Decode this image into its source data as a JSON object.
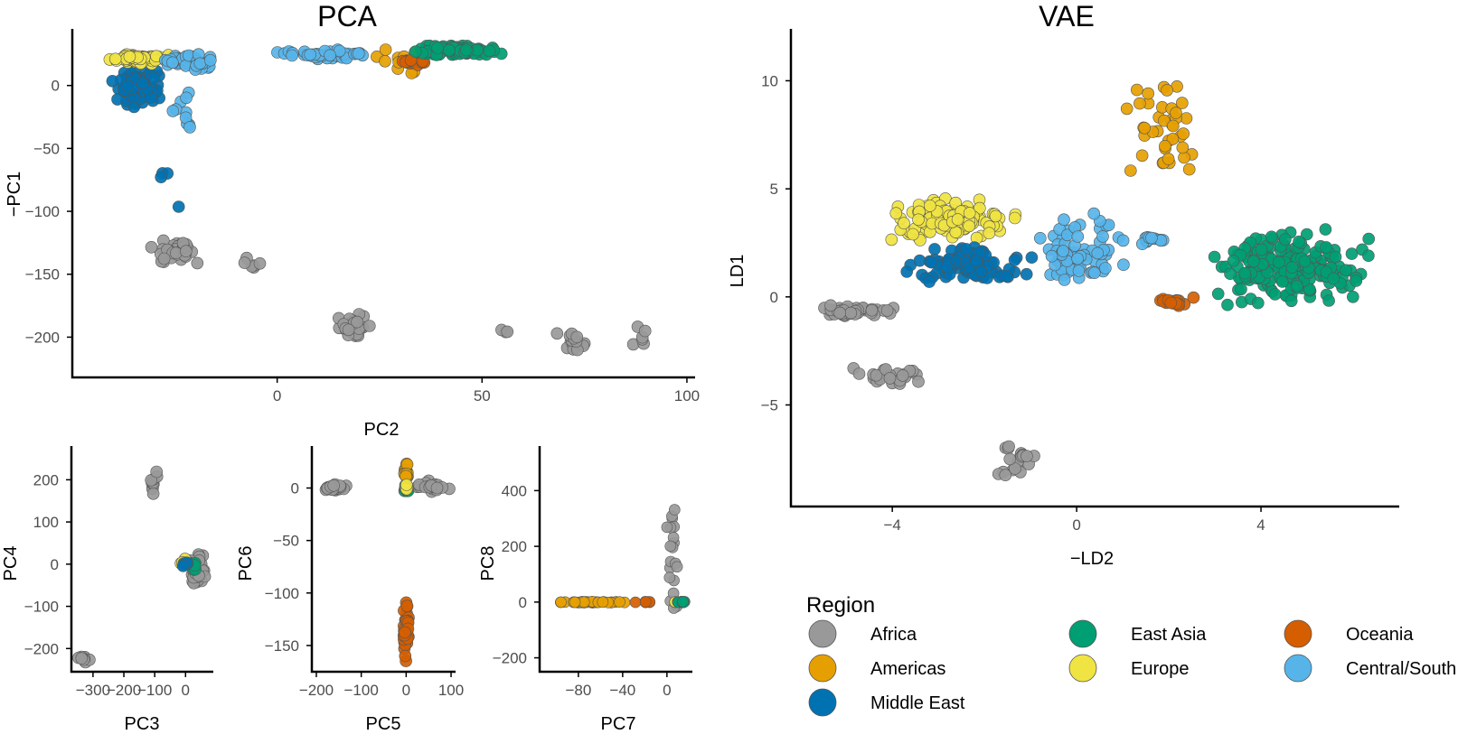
{
  "colors": {
    "Africa": "#999999",
    "Americas": "#E69F00",
    "Central/South Asia": "#56B4E9",
    "East Asia": "#009E73",
    "Europe": "#F0E442",
    "Middle East": "#0072B2",
    "Oceania": "#D55E00"
  },
  "legend": {
    "title": "Region",
    "items": [
      "Africa",
      "East Asia",
      "Oceania",
      "Americas",
      "Europe",
      "Central/South Asia",
      "Middle East"
    ]
  },
  "chart_data": [
    {
      "id": "pca-main",
      "type": "scatter",
      "title": "PCA",
      "xlabel": "PC2",
      "ylabel": "−PC1",
      "xlim": [
        -50,
        102
      ],
      "ylim": [
        -232,
        45
      ],
      "xticks": [
        0,
        50,
        100
      ],
      "yticks": [
        0,
        -50,
        -100,
        -150,
        -200
      ],
      "clusters": [
        {
          "region": "Africa",
          "x": [
            -34,
            -16
          ],
          "y": [
            -145,
            -120
          ],
          "n": 45
        },
        {
          "region": "Africa",
          "x": [
            -12,
            -1
          ],
          "y": [
            -150,
            -135
          ],
          "n": 6
        },
        {
          "region": "Africa",
          "x": [
            14,
            23
          ],
          "y": [
            -203,
            -178
          ],
          "n": 25
        },
        {
          "region": "Africa",
          "x": [
            53,
            57
          ],
          "y": [
            -198,
            -192
          ],
          "n": 3
        },
        {
          "region": "Africa",
          "x": [
            66,
            79
          ],
          "y": [
            -215,
            -193
          ],
          "n": 14
        },
        {
          "region": "Africa",
          "x": [
            85,
            96
          ],
          "y": [
            -226,
            -188
          ],
          "n": 6
        },
        {
          "region": "Middle East",
          "x": [
            -42,
            -27
          ],
          "y": [
            -18,
            18
          ],
          "n": 90
        },
        {
          "region": "Middle East",
          "x": [
            -30,
            -22
          ],
          "y": [
            -100,
            -48
          ],
          "n": 4
        },
        {
          "region": "Europe",
          "x": [
            -42,
            -25
          ],
          "y": [
            16,
            27
          ],
          "n": 70
        },
        {
          "region": "Central/South Asia",
          "x": [
            -30,
            -13
          ],
          "y": [
            10,
            28
          ],
          "n": 40
        },
        {
          "region": "Central/South Asia",
          "x": [
            -27,
            -19
          ],
          "y": [
            -45,
            0
          ],
          "n": 10
        },
        {
          "region": "Central/South Asia",
          "x": [
            -3,
            28
          ],
          "y": [
            19,
            30
          ],
          "n": 40
        },
        {
          "region": "Americas",
          "x": [
            23,
            37
          ],
          "y": [
            8,
            30
          ],
          "n": 12
        },
        {
          "region": "Americas",
          "x": [
            34,
            50
          ],
          "y": [
            26,
            32
          ],
          "n": 20
        },
        {
          "region": "Oceania",
          "x": [
            28,
            38
          ],
          "y": [
            15,
            22
          ],
          "n": 15
        },
        {
          "region": "East Asia",
          "x": [
            29,
            57
          ],
          "y": [
            22,
            33
          ],
          "n": 110
        }
      ]
    },
    {
      "id": "pca-pc3-pc4",
      "type": "scatter",
      "xlabel": "PC3",
      "ylabel": "PC4",
      "xlim": [
        -370,
        90
      ],
      "ylim": [
        -255,
        280
      ],
      "xticks": [
        -300,
        -200,
        -100,
        0
      ],
      "yticks": [
        200,
        100,
        0,
        -100,
        -200
      ],
      "clusters": [
        {
          "region": "Africa",
          "x": [
            -130,
            -75
          ],
          "y": [
            150,
            240
          ],
          "n": 10
        },
        {
          "region": "Africa",
          "x": [
            -360,
            -300
          ],
          "y": [
            -240,
            -210
          ],
          "n": 8
        },
        {
          "region": "Africa",
          "x": [
            0,
            85
          ],
          "y": [
            -80,
            40
          ],
          "n": 30
        },
        {
          "region": "East Asia",
          "x": [
            10,
            40
          ],
          "y": [
            -20,
            10
          ],
          "n": 10
        },
        {
          "region": "Americas",
          "x": [
            -20,
            10
          ],
          "y": [
            -5,
            15
          ],
          "n": 5
        },
        {
          "region": "Europe",
          "x": [
            -20,
            5
          ],
          "y": [
            -5,
            15
          ],
          "n": 6
        },
        {
          "region": "Middle East",
          "x": [
            -10,
            10
          ],
          "y": [
            -10,
            10
          ],
          "n": 5
        }
      ]
    },
    {
      "id": "pca-pc5-pc6",
      "type": "scatter",
      "xlabel": "PC5",
      "ylabel": "PC6",
      "xlim": [
        -210,
        110
      ],
      "ylim": [
        -175,
        40
      ],
      "xticks": [
        -200,
        -100,
        0,
        100
      ],
      "yticks": [
        0,
        -50,
        -100,
        -150
      ],
      "clusters": [
        {
          "region": "Africa",
          "x": [
            -200,
            -120
          ],
          "y": [
            -5,
            5
          ],
          "n": 25
        },
        {
          "region": "Africa",
          "x": [
            10,
            105
          ],
          "y": [
            -5,
            8
          ],
          "n": 25
        },
        {
          "region": "Oceania",
          "x": [
            -8,
            8
          ],
          "y": [
            -170,
            -100
          ],
          "n": 35
        },
        {
          "region": "Americas",
          "x": [
            -5,
            5
          ],
          "y": [
            5,
            30
          ],
          "n": 20
        },
        {
          "region": "East Asia",
          "x": [
            -5,
            5
          ],
          "y": [
            -8,
            5
          ],
          "n": 10
        },
        {
          "region": "Europe",
          "x": [
            -5,
            5
          ],
          "y": [
            -3,
            5
          ],
          "n": 8
        }
      ]
    },
    {
      "id": "pca-pc7-pc8",
      "type": "scatter",
      "xlabel": "PC7",
      "ylabel": "PC8",
      "xlim": [
        -115,
        23
      ],
      "ylim": [
        -250,
        560
      ],
      "xticks": [
        -80,
        -40,
        0
      ],
      "yticks": [
        400,
        200,
        0,
        -200
      ],
      "clusters": [
        {
          "region": "Americas",
          "x": [
            -110,
            -25
          ],
          "y": [
            -3,
            3
          ],
          "n": 40
        },
        {
          "region": "Oceania",
          "x": [
            -30,
            -10
          ],
          "y": [
            -3,
            3
          ],
          "n": 8
        },
        {
          "region": "Africa",
          "x": [
            -2,
            12
          ],
          "y": [
            -220,
            510
          ],
          "n": 20
        },
        {
          "region": "Europe",
          "x": [
            5,
            10
          ],
          "y": [
            -3,
            3
          ],
          "n": 3
        },
        {
          "region": "East Asia",
          "x": [
            8,
            20
          ],
          "y": [
            -3,
            3
          ],
          "n": 15
        }
      ]
    },
    {
      "id": "vae",
      "type": "scatter",
      "title": "VAE",
      "xlabel": "−LD2",
      "ylabel": "LD1",
      "xlim": [
        -6.2,
        7.0
      ],
      "ylim": [
        -9.7,
        12.4
      ],
      "xticks": [
        -4,
        0,
        4
      ],
      "yticks": [
        10,
        5,
        0,
        -5
      ],
      "clusters": [
        {
          "region": "Africa",
          "x": [
            -5.9,
            -3.8
          ],
          "y": [
            -1.0,
            -0.3
          ],
          "n": 50
        },
        {
          "region": "Africa",
          "x": [
            -5.0,
            -3.0
          ],
          "y": [
            -4.2,
            -3.1
          ],
          "n": 25
        },
        {
          "region": "Africa",
          "x": [
            -1.9,
            -0.7
          ],
          "y": [
            -8.8,
            -6.4
          ],
          "n": 20
        },
        {
          "region": "Europe",
          "x": [
            -4.4,
            -1.0
          ],
          "y": [
            2.3,
            4.8
          ],
          "n": 110
        },
        {
          "region": "Middle East",
          "x": [
            -4.1,
            -0.6
          ],
          "y": [
            0.5,
            2.5
          ],
          "n": 100
        },
        {
          "region": "Central/South Asia",
          "x": [
            -1.2,
            1.2
          ],
          "y": [
            0.0,
            4.9
          ],
          "n": 70
        },
        {
          "region": "Central/South Asia",
          "x": [
            1.1,
            2.3
          ],
          "y": [
            2.3,
            2.9
          ],
          "n": 12
        },
        {
          "region": "Americas",
          "x": [
            0.9,
            3.0
          ],
          "y": [
            4.1,
            11.4
          ],
          "n": 40
        },
        {
          "region": "Oceania",
          "x": [
            1.5,
            2.7
          ],
          "y": [
            -0.6,
            0.1
          ],
          "n": 20
        },
        {
          "region": "East Asia",
          "x": [
            2.5,
            6.7
          ],
          "y": [
            -0.8,
            3.4
          ],
          "n": 200
        }
      ]
    }
  ]
}
